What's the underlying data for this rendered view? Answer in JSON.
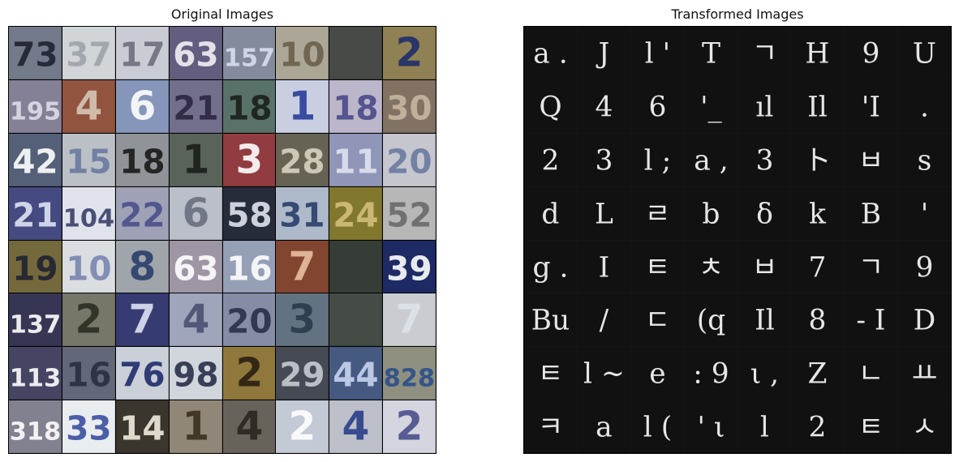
{
  "panels": {
    "original": {
      "title": "Original Images",
      "rows": [
        [
          "73",
          "37",
          "17",
          "63",
          "157",
          "10",
          "",
          "2"
        ],
        [
          "195",
          "4",
          "6",
          "21",
          "18",
          "1",
          "18",
          "30"
        ],
        [
          "42",
          "15",
          "18",
          "1",
          "3",
          "28",
          "11",
          "20"
        ],
        [
          "21",
          "104",
          "22",
          "6",
          "58",
          "31",
          "24",
          "52"
        ],
        [
          "19",
          "10",
          "8",
          "63",
          "16",
          "7",
          "",
          "39"
        ],
        [
          "137",
          "2",
          "7",
          "4",
          "20",
          "3",
          "",
          "7"
        ],
        [
          "113",
          "16",
          "76",
          "98",
          "2",
          "29",
          "44",
          "828"
        ],
        [
          "318",
          "33",
          "14",
          "1",
          "4",
          "2",
          "4",
          "2"
        ]
      ],
      "backgrounds": [
        [
          "#6b7283",
          "#dfe3e6",
          "#c7c9d3",
          "#6a6487",
          "#7c8496",
          "#b7b1a0",
          "#3c3f3c",
          "#9a8a5a"
        ],
        [
          "#8d8aa0",
          "#8a4a34",
          "#8ea0c6",
          "#6a6686",
          "#5f7a70",
          "#c7cbe0",
          "#c7c2d6",
          "#7b6a5a"
        ],
        [
          "#4a5570",
          "#c7ccd3",
          "#8a8e93",
          "#5f6a60",
          "#8b3035",
          "#6e6a5a",
          "#8a90b3",
          "#d3d3dc"
        ],
        [
          "#4a4f8a",
          "#dfe2ea",
          "#a9acc3",
          "#b7bcc7",
          "#2a2f3f",
          "#a9b5c7",
          "#8a8030",
          "#b3b3b3"
        ],
        [
          "#6b6030",
          "#e9ecf0",
          "#9aa0a6",
          "#a9a0b0",
          "#8f9bb3",
          "#8a4a34",
          "#2a302a",
          "#1f2d6b"
        ],
        [
          "#3a3a5a",
          "#6f6f60",
          "#3a3f7a",
          "#9aa0b6",
          "#8d96b0",
          "#5a6a7a",
          "#4a504a",
          "#c7c9cf"
        ],
        [
          "#3a3a5a",
          "#6a6f80",
          "#c7ccd6",
          "#dfe3ea",
          "#8a7030",
          "#4a4f5a",
          "#3a4f7a",
          "#9a9a8a"
        ],
        [
          "#8a8a9a",
          "#e9ecf0",
          "#3f3a30",
          "#8a8070",
          "#6f6a60",
          "#c0c6d3",
          "#c9ccd6",
          "#d3d3de"
        ]
      ],
      "foregrounds": [
        [
          "#1f2230",
          "#9ea4aa",
          "#6d6f80",
          "#f2f0f5",
          "#d9def0",
          "#6a604a",
          "#2a2d2a",
          "#1f2d6b"
        ],
        [
          "#dfdcea",
          "#d8c6b5",
          "#ffffff",
          "#2a2540",
          "#1a1f1a",
          "#2a3f9a",
          "#4a4a8a",
          "#c7b7a0"
        ],
        [
          "#ffffff",
          "#6a7aa0",
          "#1a1a1a",
          "#1a1f1a",
          "#ffffff",
          "#d9d3c0",
          "#dfe3f0",
          "#6a7aa0"
        ],
        [
          "#dfe3f5",
          "#3a3f6a",
          "#4a4f8a",
          "#6a7080",
          "#dfe3f0",
          "#2a3f6a",
          "#d3c07a",
          "#6a6a6a"
        ],
        [
          "#1f2230",
          "#7a86b0",
          "#2a3f6a",
          "#ffffff",
          "#ffffff",
          "#e9c0a0",
          "#3a403a",
          "#ffffff"
        ],
        [
          "#ffffff",
          "#2a2d20",
          "#dfe3f5",
          "#4a5070",
          "#2a2f4a",
          "#2a3a4a",
          "#3a403a",
          "#dfe3ea"
        ],
        [
          "#ffffff",
          "#2a2f40",
          "#1f2d6b",
          "#2a2f4a",
          "#2a2010",
          "#c7ccd3",
          "#c7d3f0",
          "#2a4f8a"
        ],
        [
          "#ffffff",
          "#3a4fa0",
          "#f0eadf",
          "#3a3020",
          "#2a2520",
          "#ffffff",
          "#2a3f8a",
          "#4a4f8a"
        ]
      ]
    },
    "transformed": {
      "title": "Transformed Images",
      "rows": [
        [
          "a .",
          "J",
          "l '",
          "T",
          "ㄱ",
          "H",
          "9",
          "U"
        ],
        [
          "Q",
          "4",
          "6",
          "'_",
          "ıl",
          "Il",
          "'I",
          "."
        ],
        [
          "2",
          "3",
          "l ;",
          "a ,",
          "3",
          "ト",
          "ㅂ",
          "s"
        ],
        [
          "d",
          "L",
          "ㄹ",
          "b",
          "δ",
          "k",
          "B",
          "'"
        ],
        [
          "g .",
          "I",
          "ㅌ",
          "ㅊ",
          "ㅂ",
          "7",
          "ㄱ",
          "9"
        ],
        [
          "Bu",
          "/ ",
          "ㄷ",
          "(q",
          "Il",
          "8",
          "- I",
          "D"
        ],
        [
          "ㅌ",
          "l ~",
          "e",
          ": 9",
          "ι ,",
          "Z",
          "ㄴ",
          "ㅛ"
        ],
        [
          "ㅋ",
          "a",
          "l (",
          "' ι",
          "l",
          "2",
          "ㅌ",
          "ㅅ"
        ]
      ]
    }
  }
}
